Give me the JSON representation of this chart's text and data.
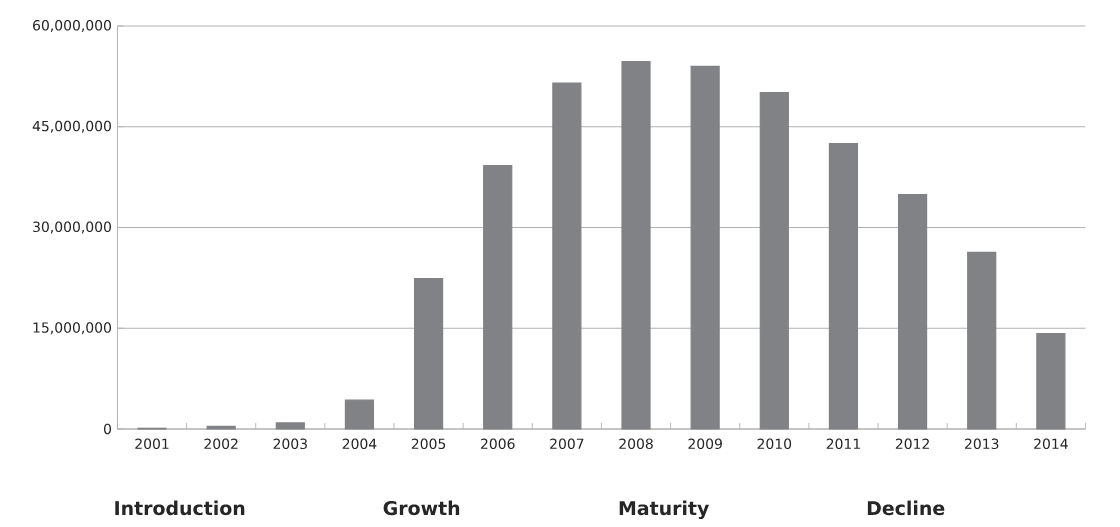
{
  "chart_data": {
    "type": "bar",
    "categories": [
      "2001",
      "2002",
      "2003",
      "2004",
      "2005",
      "2006",
      "2007",
      "2008",
      "2009",
      "2010",
      "2011",
      "2012",
      "2013",
      "2014"
    ],
    "values": [
      100000,
      400000,
      900000,
      4300000,
      22400000,
      39200000,
      51500000,
      54700000,
      54000000,
      50100000,
      42500000,
      34900000,
      26300000,
      14200000
    ],
    "color": "#818286",
    "ylim": [
      0,
      60000000
    ],
    "yticks": [
      {
        "value": 0,
        "label": "0"
      },
      {
        "value": 15000000,
        "label": "15,000,000"
      },
      {
        "value": 30000000,
        "label": "30,000,000"
      },
      {
        "value": 45000000,
        "label": "45,000,000"
      },
      {
        "value": 60000000,
        "label": "60,000,000"
      }
    ],
    "grid": "y",
    "annotations": [
      "Introduction",
      "Growth",
      "Maturity",
      "Decline"
    ]
  }
}
